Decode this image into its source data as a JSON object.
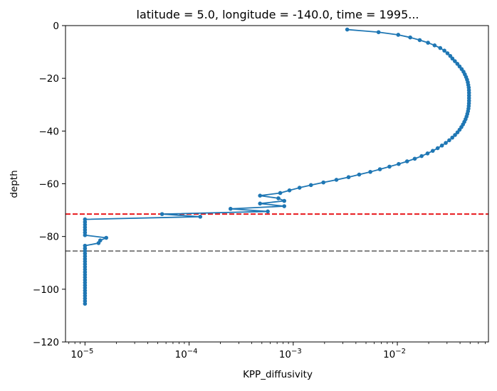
{
  "chart_data": {
    "type": "line",
    "title": "latitude = 5.0, longitude = -140.0, time = 1995...",
    "xlabel": "KPP_diffusivity",
    "ylabel": "depth",
    "xscale": "log",
    "xlim": [
      6.5e-06,
      0.075
    ],
    "ylim": [
      -120,
      0
    ],
    "x_ticks": [
      {
        "value": 1e-05,
        "base": "10",
        "exp": "−5"
      },
      {
        "value": 0.0001,
        "base": "10",
        "exp": "−4"
      },
      {
        "value": 0.001,
        "base": "10",
        "exp": "−3"
      },
      {
        "value": 0.01,
        "base": "10",
        "exp": "−2"
      }
    ],
    "y_ticks": [
      "0",
      "−20",
      "−40",
      "−60",
      "−80",
      "−100",
      "−120"
    ],
    "y_tick_values": [
      0,
      -20,
      -40,
      -60,
      -80,
      -100,
      -120
    ],
    "line_color": "#1f77b4",
    "hlines": [
      {
        "y": -71.5,
        "color": "#e8191c",
        "style": "dashed"
      },
      {
        "y": -85.5,
        "color": "#7f7f7f",
        "style": "dashed"
      }
    ],
    "series": [
      {
        "x": [
          0.0033,
          0.0066,
          0.0102,
          0.0133,
          0.0164,
          0.0197,
          0.0228,
          0.0258,
          0.0283,
          0.0303,
          0.0322,
          0.0338,
          0.0357,
          0.0377,
          0.0396,
          0.0415,
          0.0432,
          0.0445,
          0.0457,
          0.0467,
          0.0475,
          0.048,
          0.0485,
          0.0487,
          0.0488,
          0.0488,
          0.0488,
          0.0488,
          0.0487,
          0.0485,
          0.0482,
          0.0477,
          0.047,
          0.0462,
          0.0452,
          0.044,
          0.0427,
          0.0412,
          0.0396,
          0.0378,
          0.0358,
          0.0337,
          0.0315,
          0.0292,
          0.0268,
          0.0244,
          0.0219,
          0.0195,
          0.0171,
          0.0147,
          0.0124,
          0.0103,
          0.0084,
          0.0068,
          0.0055,
          0.0043,
          0.0034,
          0.0026,
          0.00195,
          0.00148,
          0.00115,
          0.00092,
          0.00075,
          0.00048,
          0.00072,
          0.00082,
          0.00048,
          0.00082,
          0.00025,
          0.00057,
          5.5e-05,
          0.000128,
          1e-05,
          1e-05,
          1e-05,
          1e-05,
          1e-05,
          1e-05,
          1e-05,
          1.6e-05,
          1.4e-05,
          1.35e-05,
          1e-05,
          1e-05,
          1e-05,
          1e-05,
          1e-05,
          1e-05,
          1e-05,
          1e-05,
          1e-05,
          1e-05,
          1e-05,
          1e-05,
          1e-05,
          1e-05,
          1e-05,
          1e-05,
          1e-05,
          1e-05,
          1e-05,
          1e-05,
          1e-05,
          1e-05,
          1e-05
        ],
        "y": [
          -1.5,
          -2.5,
          -3.5,
          -4.5,
          -5.5,
          -6.5,
          -7.5,
          -8.5,
          -9.5,
          -10.5,
          -11.5,
          -12.5,
          -13.5,
          -14.5,
          -15.5,
          -16.5,
          -17.5,
          -18.5,
          -19.5,
          -20.5,
          -21.5,
          -22.5,
          -23.5,
          -24.5,
          -25.5,
          -26.5,
          -27.5,
          -28.5,
          -29.5,
          -30.5,
          -31.5,
          -32.5,
          -33.5,
          -34.5,
          -35.5,
          -36.5,
          -37.5,
          -38.5,
          -39.5,
          -40.5,
          -41.5,
          -42.5,
          -43.5,
          -44.5,
          -45.5,
          -46.5,
          -47.5,
          -48.5,
          -49.5,
          -50.5,
          -51.5,
          -52.5,
          -53.5,
          -54.5,
          -55.5,
          -56.5,
          -57.5,
          -58.5,
          -59.5,
          -60.5,
          -61.5,
          -62.5,
          -63.5,
          -64.5,
          -65.5,
          -66.5,
          -67.5,
          -68.5,
          -69.5,
          -70.5,
          -71.5,
          -72.5,
          -73.5,
          -74.5,
          -75.5,
          -76.5,
          -77.5,
          -78.5,
          -79.5,
          -80.5,
          -81.5,
          -82.5,
          -83.5,
          -84.5,
          -85.5,
          -86.5,
          -87.5,
          -88.5,
          -89.5,
          -90.5,
          -91.5,
          -92.5,
          -93.5,
          -94.5,
          -95.5,
          -96.5,
          -97.5,
          -98.5,
          -99.5,
          -100.5,
          -101.5,
          -102.5,
          -103.5,
          -104.5,
          -105.5
        ]
      }
    ]
  }
}
